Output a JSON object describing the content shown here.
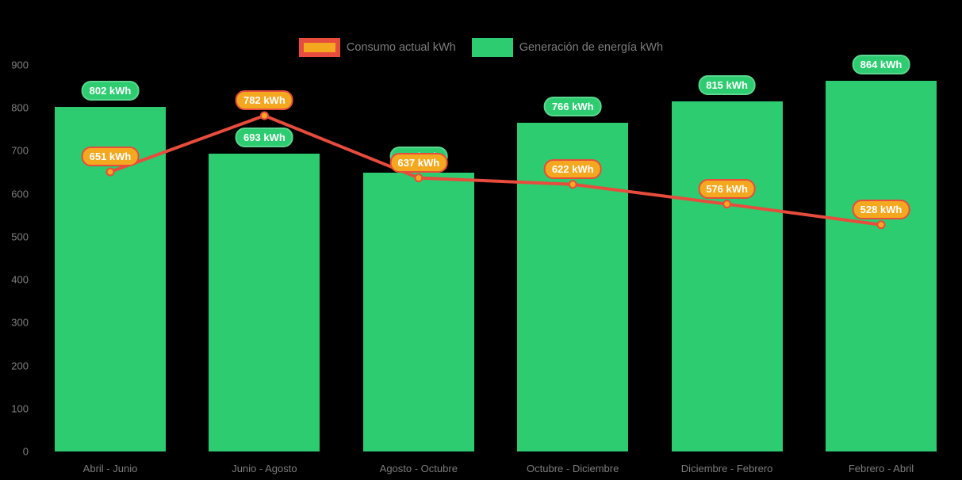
{
  "background": "#000000",
  "colors": {
    "bar_green": "#2ECC71",
    "green_label_border": "#5BD78F",
    "line_red": "#E74C3C",
    "marker_orange": "#F3A81F",
    "axis_text": "#7F7F7F",
    "label_text": "#FFFFFF"
  },
  "legend": {
    "position": "top-center",
    "consumption_label": "Consumo actual kWh",
    "generation_label": "Generación de energía kWh"
  },
  "chart_data": {
    "type": "bar",
    "subtype": "bar-line-combo",
    "title": "",
    "xlabel": "",
    "ylabel": "",
    "categories": [
      "Abril - Junio",
      "Junio - Agosto",
      "Agosto - Octubre",
      "Octubre - Diciembre",
      "Diciembre - Febrero",
      "Febrero - Abril"
    ],
    "series": [
      {
        "name": "Generación de energía kWh",
        "render": "bar",
        "values": [
          802,
          693,
          649,
          766,
          815,
          864
        ],
        "color": "#2ECC71",
        "data_labels": [
          "802 kWh",
          "693 kWh",
          "649 kWh",
          "766 kWh",
          "815 kWh",
          "864 kWh"
        ]
      },
      {
        "name": "Consumo actual kWh",
        "render": "line",
        "values": [
          651,
          782,
          637,
          622,
          576,
          528
        ],
        "color": "#E74C3C",
        "marker_color": "#F3A81F",
        "data_labels": [
          "651 kWh",
          "782 kWh",
          "637 kWh",
          "622 kWh",
          "576 kWh",
          "528 kWh"
        ]
      }
    ],
    "y_ticks": [
      0,
      100,
      200,
      300,
      400,
      500,
      600,
      700,
      800,
      900
    ],
    "ylim": [
      0,
      900
    ],
    "grid": false,
    "legend_position": "top-center",
    "label_suffix": " kWh"
  }
}
